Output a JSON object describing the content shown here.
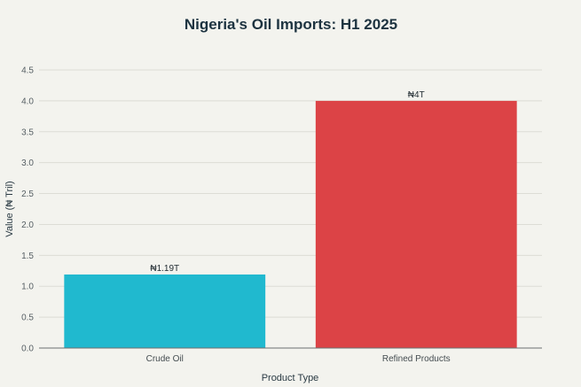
{
  "chart_data": {
    "type": "bar",
    "title": "Nigeria's Oil Imports: H1 2025",
    "xlabel": "Product Type",
    "ylabel": "Value (₦ Tril)",
    "categories": [
      "Crude Oil",
      "Refined Products"
    ],
    "values": [
      1.19,
      4.0
    ],
    "data_labels": [
      "₦1.19T",
      "₦4T"
    ],
    "ylim": [
      0,
      4.5
    ],
    "yticks": [
      "0.0",
      "0.5",
      "1.0",
      "1.5",
      "2.0",
      "2.5",
      "3.0",
      "3.5",
      "4.0",
      "4.5"
    ],
    "ytick_values": [
      0,
      0.5,
      1.0,
      1.5,
      2.0,
      2.5,
      3.0,
      3.5,
      4.0,
      4.5
    ],
    "colors": [
      "#20b9cf",
      "#dc4346"
    ],
    "grid": true,
    "legend": "none"
  }
}
